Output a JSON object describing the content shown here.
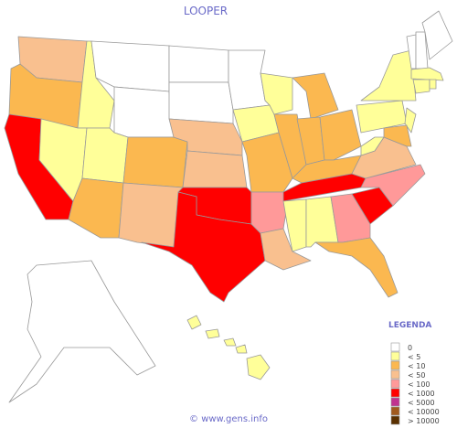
{
  "title": "LOOPER",
  "legend": {
    "title": "LEGENDA",
    "items": [
      {
        "label": "0",
        "color": "#ffffff"
      },
      {
        "label": "< 5",
        "color": "#ffff99"
      },
      {
        "label": "< 10",
        "color": "#fbb850"
      },
      {
        "label": "< 50",
        "color": "#f9c08f"
      },
      {
        "label": "< 100",
        "color": "#ff9999"
      },
      {
        "label": "< 1000",
        "color": "#ff0000"
      },
      {
        "label": "< 5000",
        "color": "#c0338f"
      },
      {
        "label": "< 10000",
        "color": "#a05a1e"
      },
      {
        "label": "> 10000",
        "color": "#5a3000"
      }
    ]
  },
  "regions": [
    3,
    2,
    5,
    1,
    1,
    0,
    0,
    1,
    2,
    2,
    3,
    0,
    0,
    3,
    3,
    5,
    5,
    0,
    1,
    2,
    4,
    3,
    1,
    2,
    2,
    2,
    2,
    2,
    5,
    1,
    1,
    4,
    2,
    5,
    4,
    3,
    1,
    1,
    1,
    1,
    2,
    0,
    0,
    0,
    1,
    1,
    1,
    0,
    1
  ],
  "footer": "© www.gens.info"
}
